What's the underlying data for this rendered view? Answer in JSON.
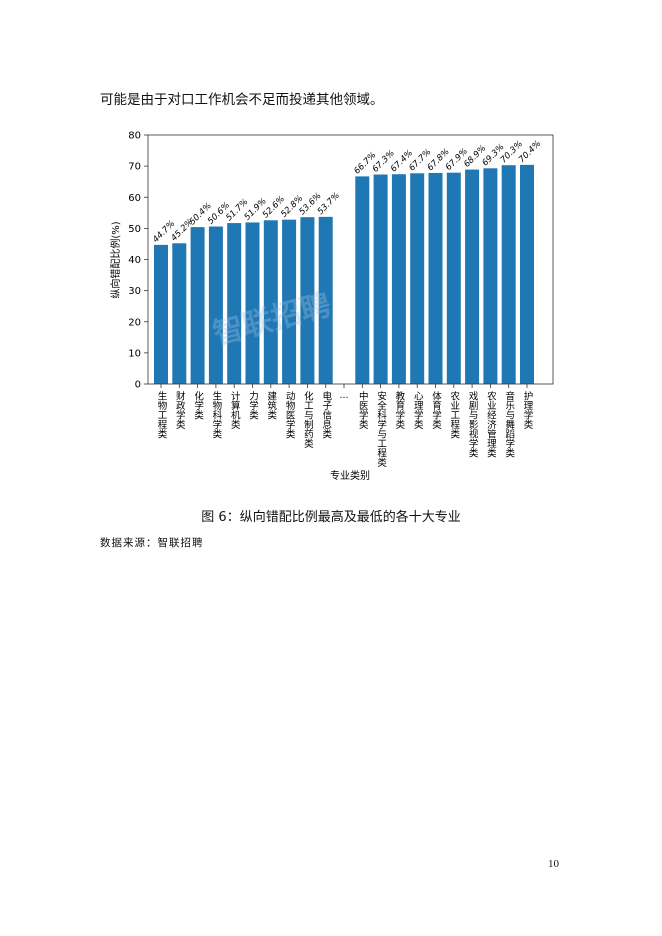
{
  "intro_text": "可能是由于对口工作机会不足而投递其他领域。",
  "figure_caption": "图 6：纵向错配比例最高及最低的各十大专业",
  "source_note": "数据来源：智联招聘",
  "page_number": "10",
  "watermark": "智联招聘",
  "chart_data": {
    "type": "bar",
    "xlabel": "专业类别",
    "ylabel": "纵向错配比例(%)",
    "ylim": [
      0,
      80
    ],
    "yticks": [
      0,
      10,
      20,
      30,
      40,
      50,
      60,
      70,
      80
    ],
    "grid": false,
    "bar_color": "#1f77b4",
    "gap_label": "…",
    "categories": [
      "生物工程类",
      "财政学类",
      "化学类",
      "生物科学类",
      "计算机类",
      "力学类",
      "建筑类",
      "动物医学类",
      "化工与制药类",
      "电子信息类",
      "中医学类",
      "安全科学与工程类",
      "教育学类",
      "心理学类",
      "体育学类",
      "农业工程类",
      "戏剧与影视学类",
      "农业经济管理类",
      "音乐与舞蹈学类",
      "护理学类"
    ],
    "values": [
      44.7,
      45.2,
      50.4,
      50.6,
      51.7,
      51.9,
      52.6,
      52.8,
      53.6,
      53.7,
      66.7,
      67.3,
      67.4,
      67.7,
      67.8,
      67.9,
      68.9,
      69.3,
      70.3,
      70.4
    ],
    "data_labels": [
      "44.7%",
      "45.2%",
      "50.4%",
      "50.6%",
      "51.7%",
      "51.9%",
      "52.6%",
      "52.8%",
      "53.6%",
      "53.7%",
      "66.7%",
      "67.3%",
      "67.4%",
      "67.7%",
      "67.8%",
      "67.9%",
      "68.9%",
      "69.3%",
      "70.3%",
      "70.4%"
    ]
  }
}
